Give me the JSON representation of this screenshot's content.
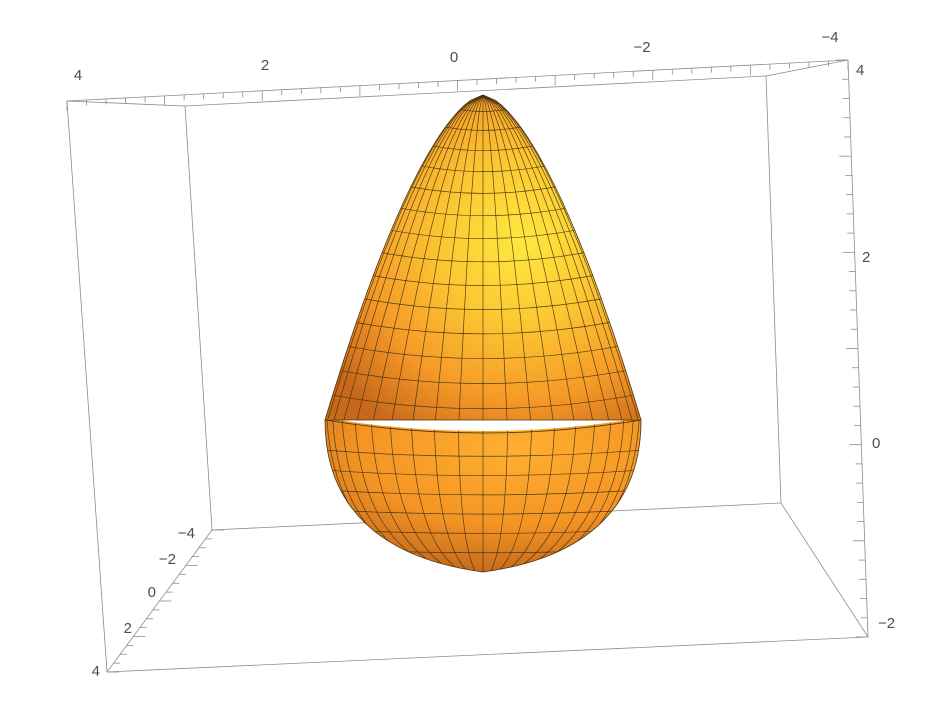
{
  "plot": {
    "type": "3d-surface",
    "surface": "egg-shaped solid of revolution (cone-like upper half, hemispherical lower cap)",
    "colors": {
      "surface_light": "#ffe23a",
      "surface_mid": "#f8a62c",
      "surface_dark": "#c96a16",
      "mesh": "#3a2a10",
      "box": "#8c8c8c",
      "labels": "#4d4d4d"
    },
    "axes": {
      "top_edge": {
        "range": [
          -4,
          4
        ],
        "tick_labels": [
          "4",
          "2",
          "0",
          "−2",
          "−4"
        ]
      },
      "left_front_edge": {
        "range": [
          -4,
          4
        ],
        "tick_labels": [
          "−4",
          "−2",
          "0",
          "2",
          "4"
        ]
      },
      "right_vertical_edge": {
        "range": [
          -2,
          4
        ],
        "tick_labels": [
          "4",
          "2",
          "0",
          "−2"
        ]
      }
    }
  }
}
